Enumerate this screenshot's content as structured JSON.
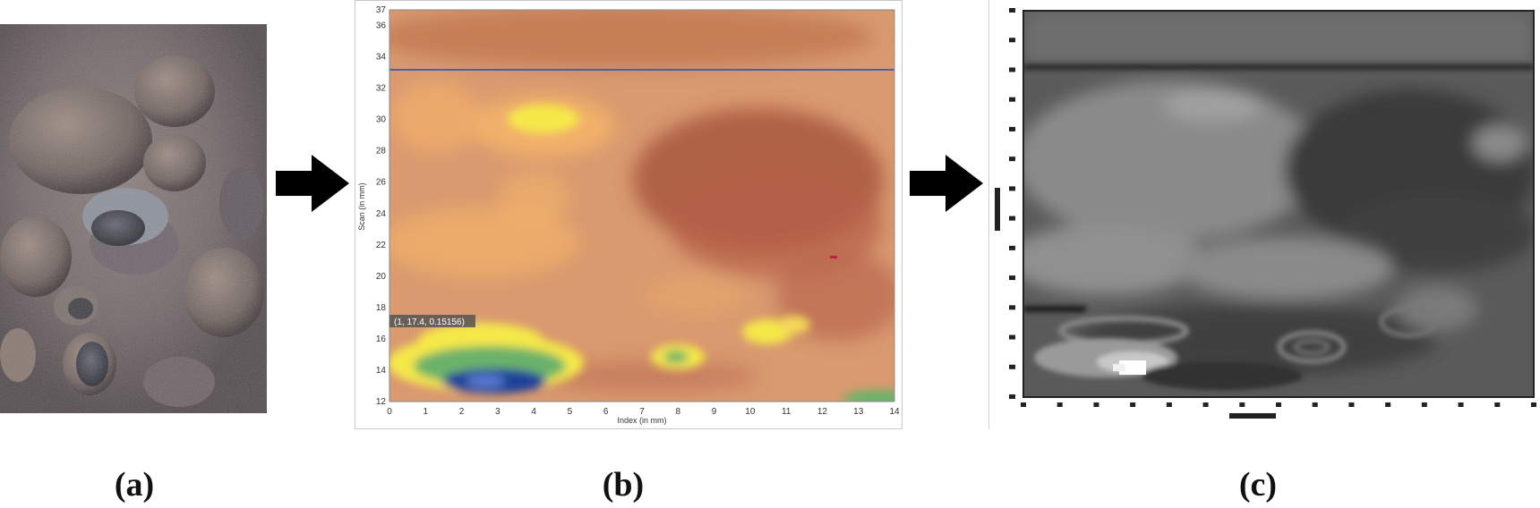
{
  "captions": {
    "a": "(a)",
    "b": "(b)",
    "c": "(c)"
  },
  "arrows": {
    "color": "#000000"
  },
  "panel_b": {
    "x_axis_label": "Index (in mm)",
    "y_axis_label": "Scan (in mm)",
    "x_ticks": [
      "0",
      "1",
      "2",
      "3",
      "4",
      "5",
      "6",
      "7",
      "8",
      "9",
      "10",
      "11",
      "12",
      "13",
      "14"
    ],
    "y_ticks": [
      "12",
      "14",
      "16",
      "18",
      "20",
      "22",
      "24",
      "26",
      "28",
      "30",
      "32",
      "34",
      "36",
      "37"
    ],
    "cursor_readout": "(1, 17.4, 0.15156)",
    "colors": {
      "base": "#d99a70",
      "warm": "#b8664e",
      "light": "#f4b46a",
      "yellow": "#f5e84a",
      "green": "#6ab26a",
      "blue": "#1a3f9a",
      "line": "#5a5aa0"
    }
  },
  "panel_c": {
    "colors": {
      "base": "#5a5a5a",
      "dark": "#333333",
      "light": "#9a9a9a",
      "white": "#ffffff"
    }
  }
}
